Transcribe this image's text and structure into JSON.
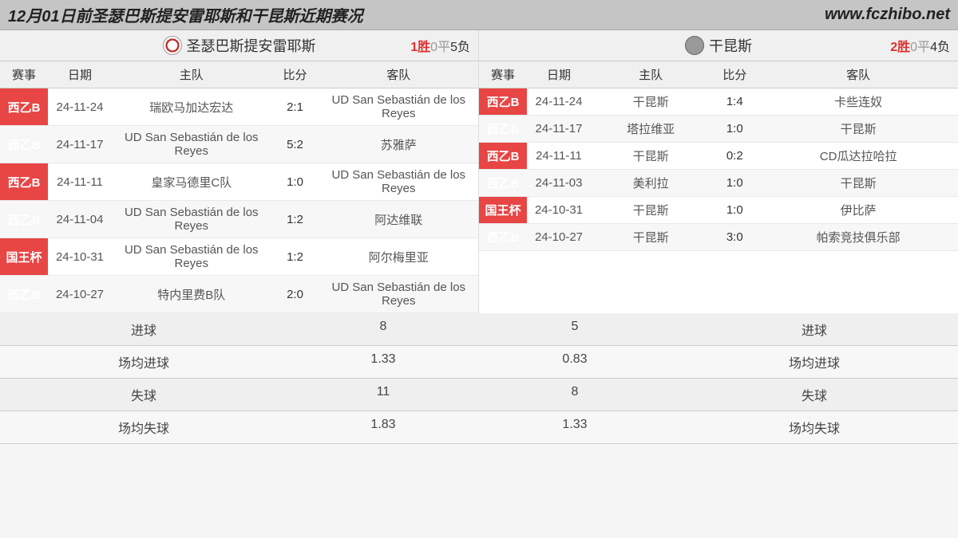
{
  "header": {
    "title": "12月01日前圣瑟巴斯提安雷耶斯和干昆斯近期赛况",
    "url": "www.fczhibo.net"
  },
  "colors": {
    "comp_bg": "#e84545",
    "comp_text": "#ffffff",
    "header_bg": "#c5c5c5",
    "win_color": "#e03030",
    "draw_color": "#999999",
    "alt_row": "#f7f7f7"
  },
  "left_team": {
    "name": "圣瑟巴斯提安雷耶斯",
    "record": {
      "win_n": "1",
      "win_t": "胜",
      "draw_n": "0",
      "draw_t": "平",
      "lose_n": "5",
      "lose_t": "负"
    },
    "columns": [
      "赛事",
      "日期",
      "主队",
      "比分",
      "客队"
    ],
    "rows": [
      {
        "comp": "西乙B",
        "date": "24-11-24",
        "home": "瑞欧马加达宏达",
        "score": "2:1",
        "away": "UD San Sebastián de los Reyes"
      },
      {
        "comp": "西乙B",
        "date": "24-11-17",
        "home": "UD San Sebastián de los Reyes",
        "score": "5:2",
        "away": "苏雅萨"
      },
      {
        "comp": "西乙B",
        "date": "24-11-11",
        "home": "皇家马德里C队",
        "score": "1:0",
        "away": "UD San Sebastián de los Reyes"
      },
      {
        "comp": "西乙B",
        "date": "24-11-04",
        "home": "UD San Sebastián de los Reyes",
        "score": "1:2",
        "away": "阿达维联"
      },
      {
        "comp": "国王杯",
        "date": "24-10-31",
        "home": "UD San Sebastián de los Reyes",
        "score": "1:2",
        "away": "阿尔梅里亚"
      },
      {
        "comp": "西乙B",
        "date": "24-10-27",
        "home": "特内里费B队",
        "score": "2:0",
        "away": "UD San Sebastián de los Reyes"
      }
    ]
  },
  "right_team": {
    "name": "干昆斯",
    "record": {
      "win_n": "2",
      "win_t": "胜",
      "draw_n": "0",
      "draw_t": "平",
      "lose_n": "4",
      "lose_t": "负"
    },
    "columns": [
      "赛事",
      "日期",
      "主队",
      "比分",
      "客队"
    ],
    "rows": [
      {
        "comp": "西乙B",
        "date": "24-11-24",
        "home": "干昆斯",
        "score": "1:4",
        "away": "卡些连奴"
      },
      {
        "comp": "西乙B",
        "date": "24-11-17",
        "home": "塔拉维亚",
        "score": "1:0",
        "away": "干昆斯"
      },
      {
        "comp": "西乙B",
        "date": "24-11-11",
        "home": "干昆斯",
        "score": "0:2",
        "away": "CD瓜达拉哈拉"
      },
      {
        "comp": "西乙B",
        "date": "24-11-03",
        "home": "美利拉",
        "score": "1:0",
        "away": "干昆斯"
      },
      {
        "comp": "国王杯",
        "date": "24-10-31",
        "home": "干昆斯",
        "score": "1:0",
        "away": "伊比萨"
      },
      {
        "comp": "西乙B",
        "date": "24-10-27",
        "home": "干昆斯",
        "score": "3:0",
        "away": "帕索竞技俱乐部"
      }
    ]
  },
  "stats": {
    "rows": [
      {
        "label": "进球",
        "left": "8",
        "right": "5"
      },
      {
        "label": "场均进球",
        "left": "1.33",
        "right": "0.83"
      },
      {
        "label": "失球",
        "left": "11",
        "right": "8"
      },
      {
        "label": "场均失球",
        "left": "1.83",
        "right": "1.33"
      }
    ]
  }
}
